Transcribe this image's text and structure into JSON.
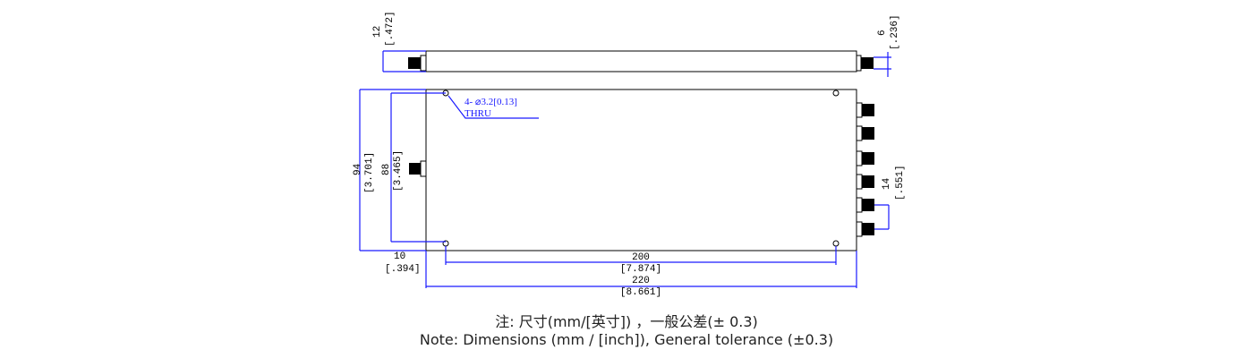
{
  "dimensions": {
    "height_overall": {
      "mm": "94",
      "inch": "[3.701]"
    },
    "hole_spacing_vertical": {
      "mm": "88",
      "inch": "[3.465]"
    },
    "hole_offset": {
      "mm": "10",
      "inch": "[.394]"
    },
    "hole_spacing_horizontal": {
      "mm": "200",
      "inch": "[7.874]"
    },
    "length_overall": {
      "mm": "220",
      "inch": "[8.661]"
    },
    "thickness": {
      "mm": "12",
      "inch": "[.472]"
    },
    "connector_height": {
      "mm": "6",
      "inch": "[.236]"
    },
    "port_pitch": {
      "mm": "14",
      "inch": "[.551]"
    }
  },
  "hole_callout": {
    "line1": "4- ⌀3.2[0.13]",
    "line2": "THRU"
  },
  "notes": {
    "chinese": "注: 尺寸(mm/[英寸]) ，一般公差(± 0.3)",
    "english": "Note: Dimensions (mm / [inch]), General tolerance (±0.3)"
  },
  "colors": {
    "dimension": "#1a1aff",
    "outline": "#000000"
  }
}
